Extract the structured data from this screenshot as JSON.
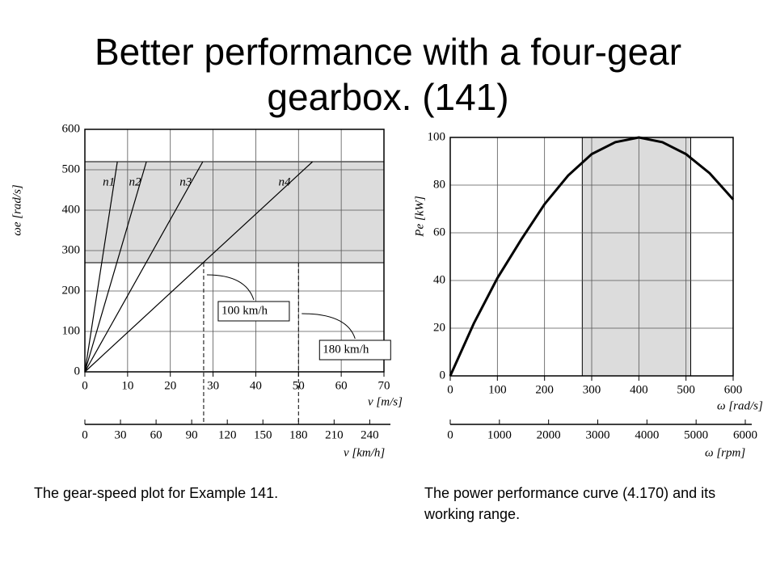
{
  "title": "Better performance with a four-gear gearbox. (141)",
  "chart_data": [
    {
      "type": "line",
      "xlabel": "v [m/s]",
      "ylabel": "ωe [rad/s]",
      "xlim": [
        0,
        70
      ],
      "xticks": [
        0,
        10,
        20,
        30,
        40,
        50,
        60,
        70
      ],
      "ylim": [
        0,
        600
      ],
      "yticks": [
        0,
        100,
        200,
        300,
        400,
        500,
        600
      ],
      "grid": true,
      "yband": [
        270,
        520
      ],
      "band_color": "#dcdcdc",
      "x2lim": [
        0,
        252
      ],
      "x2ticks": [
        0,
        30,
        60,
        90,
        120,
        150,
        180,
        210,
        240
      ],
      "x2label": "v [km/h]",
      "series": [
        {
          "name": "n1",
          "color": "#000000",
          "x": [
            0,
            7.6
          ],
          "values": [
            0,
            520
          ]
        },
        {
          "name": "n2",
          "color": "#000000",
          "x": [
            0,
            14.4
          ],
          "values": [
            0,
            520
          ]
        },
        {
          "name": "n3",
          "color": "#000000",
          "x": [
            0,
            27.6
          ],
          "values": [
            0,
            520
          ]
        },
        {
          "name": "n4",
          "color": "#000000",
          "x": [
            0,
            53.3
          ],
          "values": [
            0,
            520
          ]
        }
      ],
      "annotations": [
        {
          "text": "100 km/h",
          "x": 27.8
        },
        {
          "text": "180 km/h",
          "x": 50
        }
      ]
    },
    {
      "type": "line",
      "xlabel": "ω [rad/s]",
      "ylabel": "Pe [kW]",
      "xlim": [
        0,
        600
      ],
      "xticks": [
        0,
        100,
        200,
        300,
        400,
        500,
        600
      ],
      "ylim": [
        0,
        100
      ],
      "yticks": [
        0,
        20,
        40,
        60,
        80,
        100
      ],
      "grid": true,
      "xband": [
        280,
        510
      ],
      "band_color": "#dcdcdc",
      "x2lim": [
        0,
        6000
      ],
      "x2ticks": [
        0,
        1000,
        2000,
        3000,
        4000,
        5000,
        6000
      ],
      "x2label": "ω [rpm]",
      "color": "#000000",
      "x": [
        0,
        50,
        100,
        150,
        200,
        250,
        300,
        350,
        400,
        450,
        500,
        550,
        600
      ],
      "values": [
        0,
        22,
        41,
        57,
        72,
        84,
        93,
        98,
        100,
        98,
        93,
        85,
        74
      ]
    }
  ],
  "captions": [
    "The gear-speed plot for Example 141.",
    "The power performance curve (4.170) and its working range."
  ]
}
